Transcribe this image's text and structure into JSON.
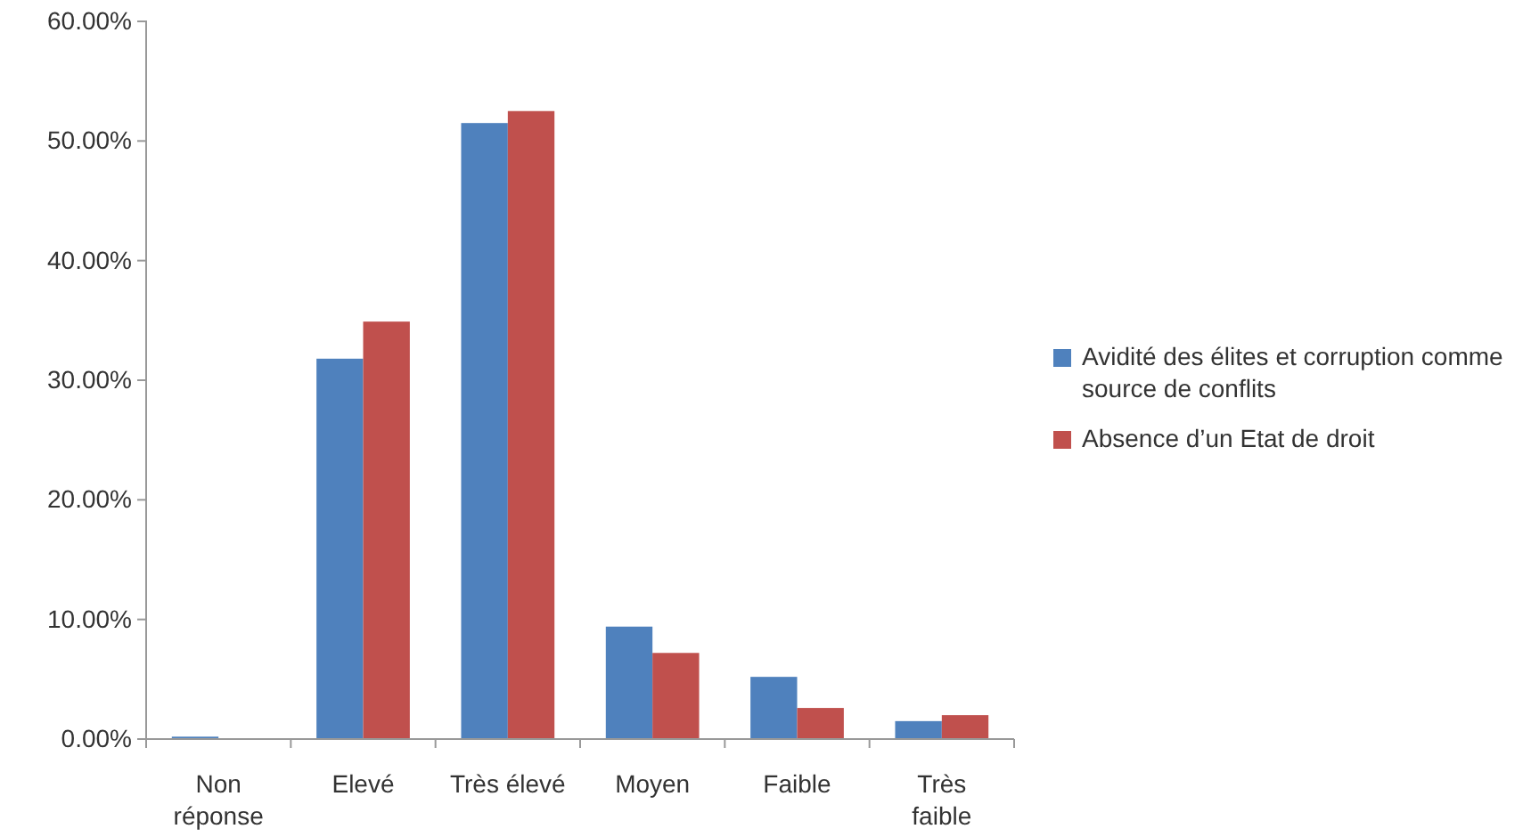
{
  "chart_data": {
    "type": "bar",
    "categories": [
      "Non réponse",
      "Elevé",
      "Très élevé",
      "Moyen",
      "Faible",
      "Très faible"
    ],
    "series": [
      {
        "name": "Avidité des élites et corruption comme source de conflits",
        "color": "#4f81bd",
        "values": [
          0.2,
          31.8,
          51.5,
          9.4,
          5.2,
          1.5
        ]
      },
      {
        "name": "Absence d’un Etat de droit",
        "color": "#c0504d",
        "values": [
          0,
          34.9,
          52.5,
          7.2,
          2.6,
          2.0
        ]
      }
    ],
    "ylim": [
      0,
      60
    ],
    "yticks": [
      {
        "value": 0,
        "label": "0.00%"
      },
      {
        "value": 10,
        "label": "10.00%"
      },
      {
        "value": 20,
        "label": "20.00%"
      },
      {
        "value": 30,
        "label": "30.00%"
      },
      {
        "value": 40,
        "label": "40.00%"
      },
      {
        "value": 50,
        "label": "50.00%"
      },
      {
        "value": 60,
        "label": "60.00%"
      }
    ],
    "grid": false,
    "legend": "right"
  }
}
